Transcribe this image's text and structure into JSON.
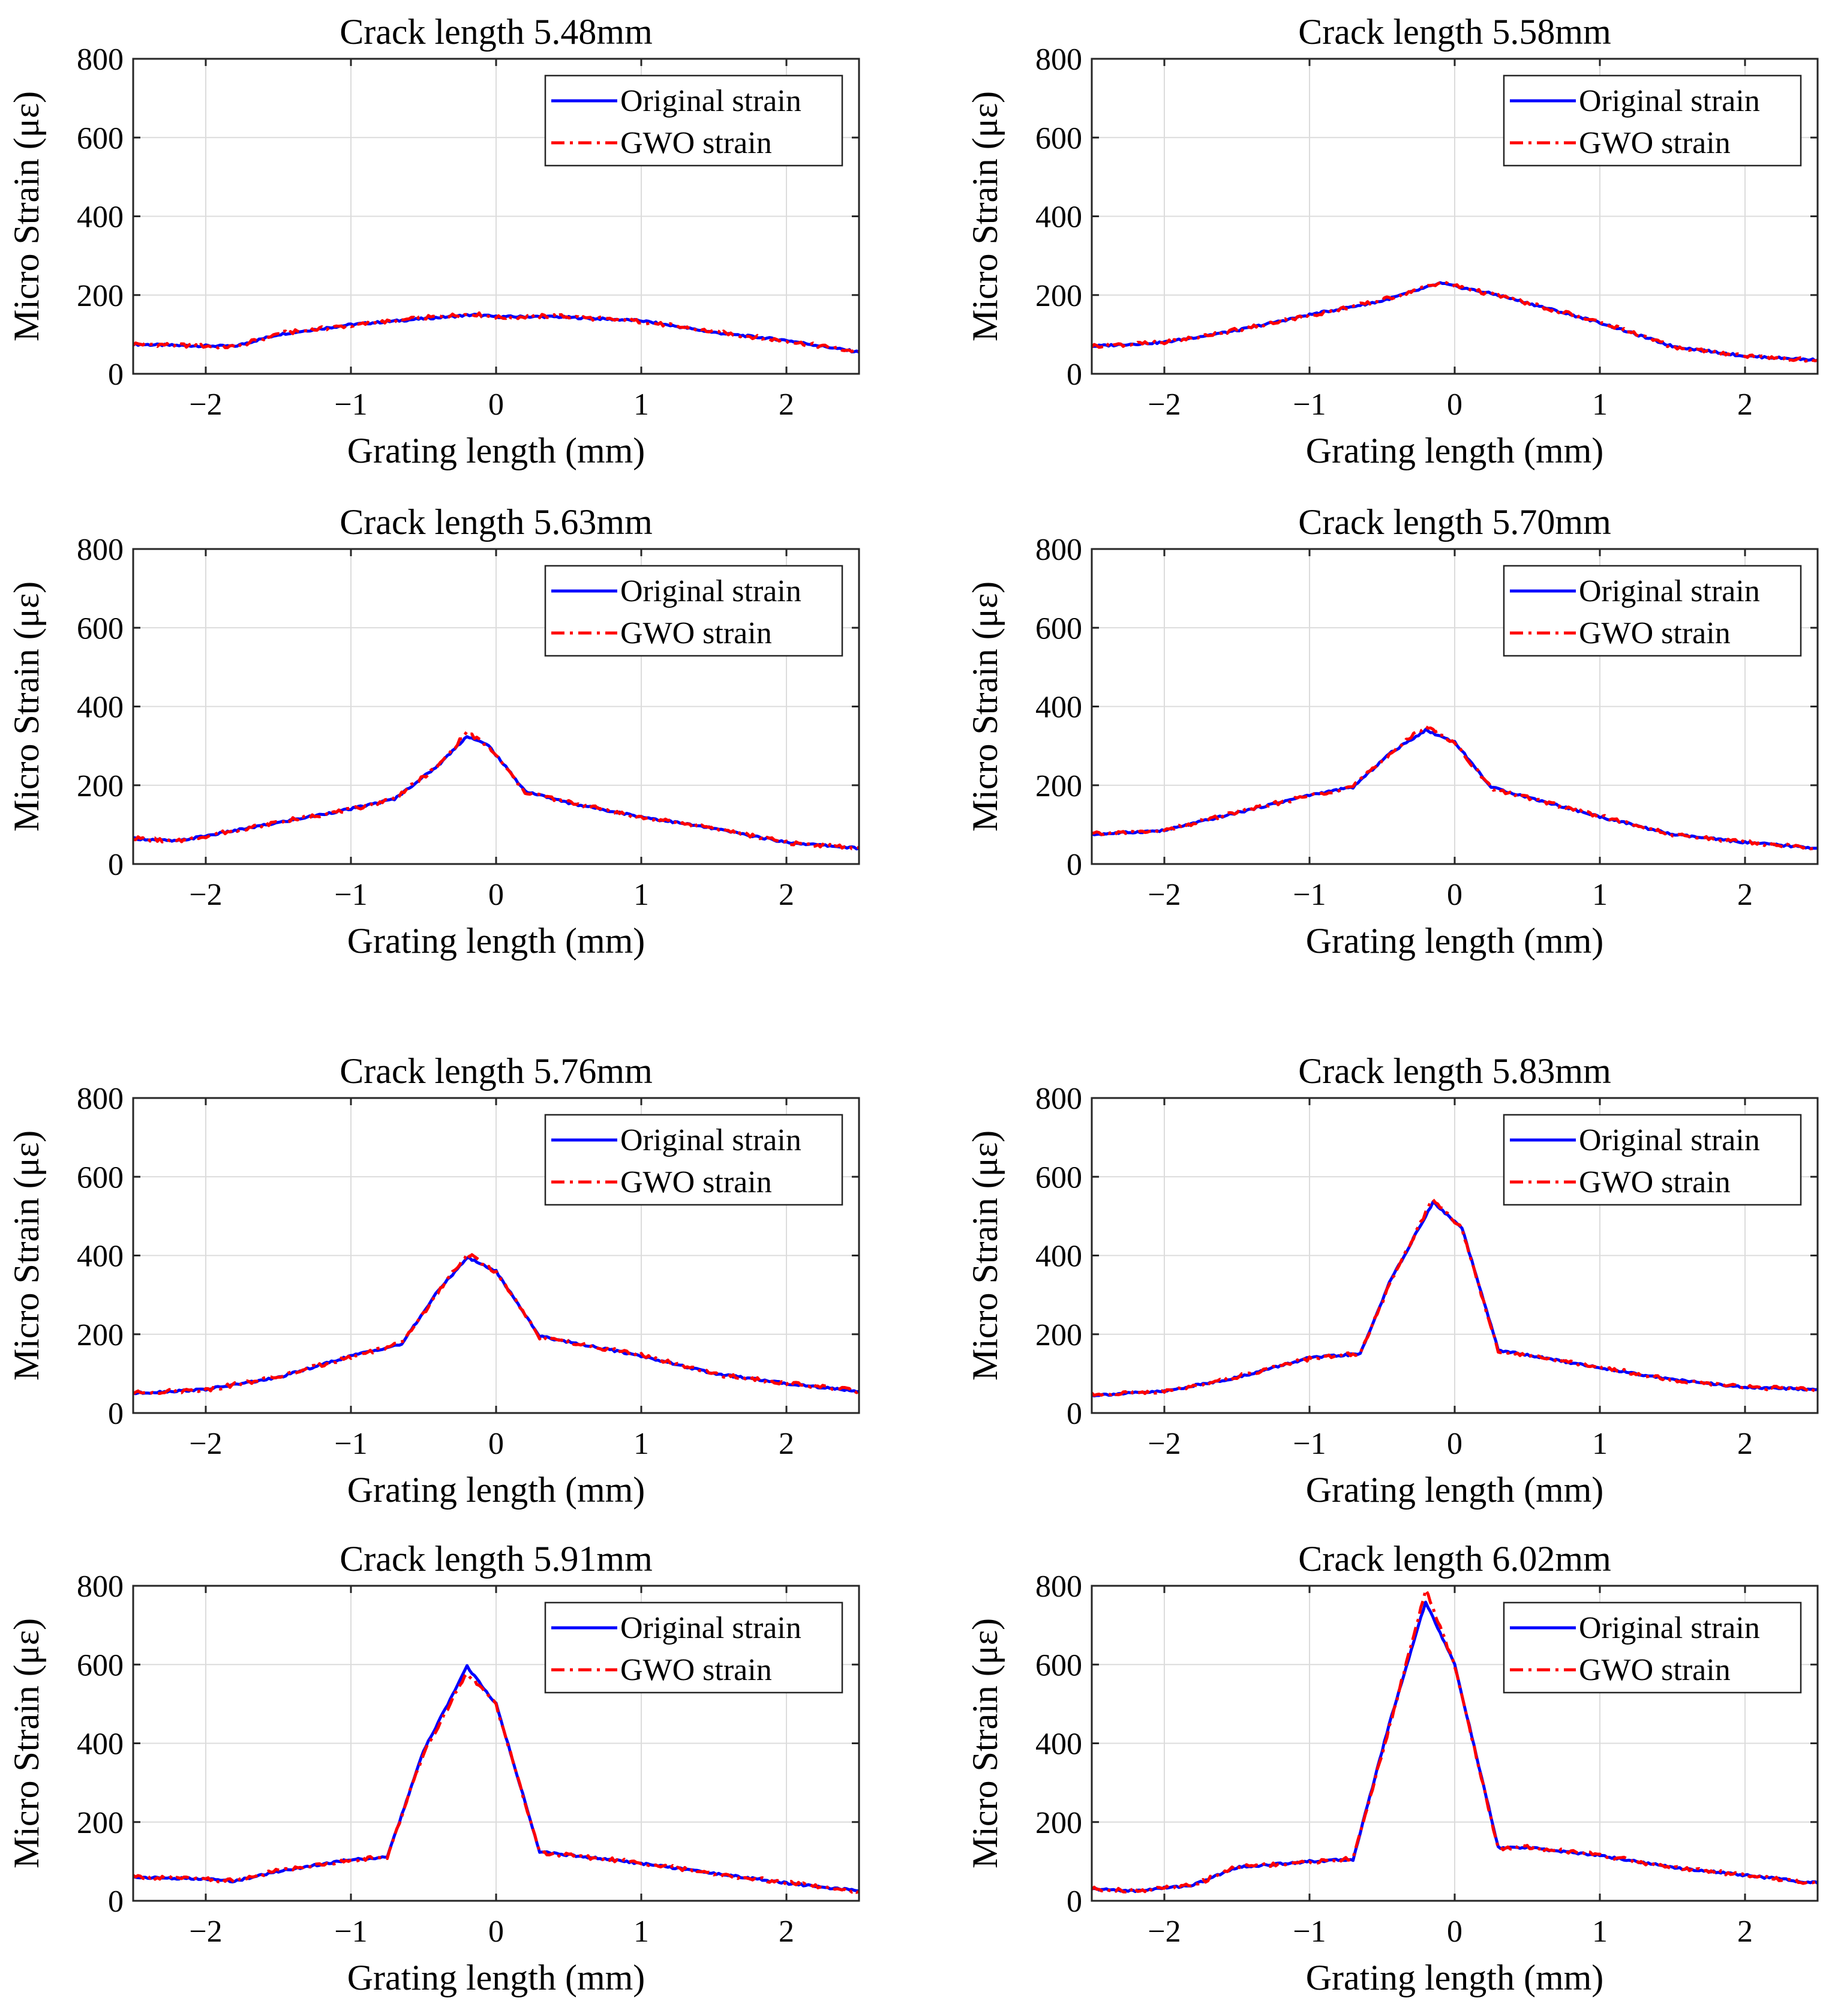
{
  "chart_data": [
    {
      "type": "line",
      "title": "Crack length 5.48mm",
      "xlabel": "Grating length (mm)",
      "ylabel": "Micro Strain (με)",
      "xlim": [
        -2.5,
        2.5
      ],
      "ylim": [
        0,
        800
      ],
      "xticks": [
        -2,
        -1,
        0,
        1,
        2
      ],
      "xtick_labels": [
        "−2",
        "−1",
        "0",
        "1",
        "2"
      ],
      "yticks": [
        0,
        200,
        400,
        600,
        800
      ],
      "ytick_labels": [
        "0",
        "200",
        "400",
        "600",
        "800"
      ],
      "grid": true,
      "legend_position": "top-right",
      "x": [
        -2.5,
        -2.2,
        -1.8,
        -1.5,
        -1.0,
        -0.5,
        -0.15,
        0.0,
        0.4,
        1.0,
        1.5,
        2.0,
        2.5
      ],
      "series": [
        {
          "name": "Original strain",
          "color": "#0000ff",
          "style": "solid",
          "values": [
            75,
            72,
            70,
            100,
            125,
            140,
            150,
            145,
            145,
            135,
            105,
            85,
            55
          ]
        },
        {
          "name": "GWO strain",
          "color": "#ff0000",
          "style": "dashdot",
          "values": [
            76,
            73,
            68,
            102,
            123,
            142,
            152,
            143,
            147,
            133,
            107,
            83,
            56
          ]
        }
      ]
    },
    {
      "type": "line",
      "title": "Crack length 5.58mm",
      "xlabel": "Grating length (mm)",
      "ylabel": "Micro Strain (με)",
      "xlim": [
        -2.5,
        2.5
      ],
      "ylim": [
        0,
        800
      ],
      "xticks": [
        -2,
        -1,
        0,
        1,
        2
      ],
      "xtick_labels": [
        "−2",
        "−1",
        "0",
        "1",
        "2"
      ],
      "yticks": [
        0,
        200,
        400,
        600,
        800
      ],
      "ytick_labels": [
        "0",
        "200",
        "400",
        "600",
        "800"
      ],
      "grid": true,
      "legend_position": "top-right",
      "x": [
        -2.5,
        -2.0,
        -1.5,
        -1.0,
        -0.5,
        -0.1,
        0.3,
        1.0,
        1.5,
        2.0,
        2.5
      ],
      "series": [
        {
          "name": "Original strain",
          "color": "#0000ff",
          "style": "solid",
          "values": [
            70,
            80,
            110,
            150,
            185,
            230,
            200,
            130,
            70,
            45,
            35
          ]
        },
        {
          "name": "GWO strain",
          "color": "#ff0000",
          "style": "dashdot",
          "values": [
            71,
            79,
            112,
            148,
            187,
            232,
            198,
            132,
            69,
            46,
            34
          ]
        }
      ]
    },
    {
      "type": "line",
      "title": "Crack length 5.63mm",
      "xlabel": "Grating length (mm)",
      "ylabel": "Micro Strain (με)",
      "xlim": [
        -2.5,
        2.5
      ],
      "ylim": [
        0,
        800
      ],
      "xticks": [
        -2,
        -1,
        0,
        1,
        2
      ],
      "xtick_labels": [
        "−2",
        "−1",
        "0",
        "1",
        "2"
      ],
      "yticks": [
        0,
        200,
        400,
        600,
        800
      ],
      "ytick_labels": [
        "0",
        "200",
        "400",
        "600",
        "800"
      ],
      "grid": true,
      "legend_position": "top-right",
      "x": [
        -2.5,
        -2.2,
        -1.5,
        -1.0,
        -0.7,
        -0.4,
        -0.2,
        -0.05,
        0.2,
        0.5,
        1.0,
        1.5,
        2.0,
        2.5
      ],
      "series": [
        {
          "name": "Original strain",
          "color": "#0000ff",
          "style": "solid",
          "values": [
            65,
            58,
            105,
            140,
            165,
            250,
            325,
            300,
            185,
            155,
            120,
            90,
            55,
            40
          ]
        },
        {
          "name": "GWO strain",
          "color": "#ff0000",
          "style": "dashdot",
          "values": [
            66,
            57,
            107,
            138,
            167,
            248,
            335,
            298,
            183,
            157,
            118,
            92,
            54,
            41
          ]
        }
      ]
    },
    {
      "type": "line",
      "title": "Crack length 5.70mm",
      "xlabel": "Grating length (mm)",
      "ylabel": "Micro Strain (με)",
      "xlim": [
        -2.5,
        2.5
      ],
      "ylim": [
        0,
        800
      ],
      "xticks": [
        -2,
        -1,
        0,
        1,
        2
      ],
      "xtick_labels": [
        "−2",
        "−1",
        "0",
        "1",
        "2"
      ],
      "yticks": [
        0,
        200,
        400,
        600,
        800
      ],
      "ytick_labels": [
        "0",
        "200",
        "400",
        "600",
        "800"
      ],
      "grid": true,
      "legend_position": "top-right",
      "x": [
        -2.5,
        -2.0,
        -1.5,
        -1.0,
        -0.7,
        -0.45,
        -0.2,
        0.0,
        0.25,
        1.0,
        1.5,
        2.0,
        2.5
      ],
      "series": [
        {
          "name": "Original strain",
          "color": "#0000ff",
          "style": "solid",
          "values": [
            75,
            85,
            130,
            175,
            195,
            280,
            340,
            310,
            195,
            120,
            75,
            55,
            40
          ]
        },
        {
          "name": "GWO strain",
          "color": "#ff0000",
          "style": "dashdot",
          "values": [
            76,
            84,
            132,
            173,
            197,
            278,
            352,
            308,
            193,
            122,
            74,
            56,
            39
          ]
        }
      ]
    },
    {
      "type": "line",
      "title": "Crack length 5.76mm",
      "xlabel": "Grating length (mm)",
      "ylabel": "Micro Strain (με)",
      "xlim": [
        -2.5,
        2.5
      ],
      "ylim": [
        0,
        800
      ],
      "xticks": [
        -2,
        -1,
        0,
        1,
        2
      ],
      "xtick_labels": [
        "−2",
        "−1",
        "0",
        "1",
        "2"
      ],
      "yticks": [
        0,
        200,
        400,
        600,
        800
      ],
      "ytick_labels": [
        "0",
        "200",
        "400",
        "600",
        "800"
      ],
      "grid": true,
      "legend_position": "top-right",
      "x": [
        -2.5,
        -2.0,
        -1.5,
        -1.0,
        -0.65,
        -0.4,
        -0.2,
        0.0,
        0.3,
        1.0,
        1.5,
        2.0,
        2.5
      ],
      "series": [
        {
          "name": "Original strain",
          "color": "#0000ff",
          "style": "solid",
          "values": [
            50,
            60,
            90,
            145,
            175,
            310,
            395,
            360,
            195,
            145,
            100,
            75,
            55
          ]
        },
        {
          "name": "GWO strain",
          "color": "#ff0000",
          "style": "dashdot",
          "values": [
            51,
            59,
            92,
            143,
            177,
            305,
            405,
            358,
            193,
            147,
            99,
            76,
            56
          ]
        }
      ]
    },
    {
      "type": "line",
      "title": "Crack length 5.83mm",
      "xlabel": "Grating length (mm)",
      "ylabel": "Micro Strain (με)",
      "xlim": [
        -2.5,
        2.5
      ],
      "ylim": [
        0,
        800
      ],
      "xticks": [
        -2,
        -1,
        0,
        1,
        2
      ],
      "xtick_labels": [
        "−2",
        "−1",
        "0",
        "1",
        "2"
      ],
      "yticks": [
        0,
        200,
        400,
        600,
        800
      ],
      "ytick_labels": [
        "0",
        "200",
        "400",
        "600",
        "800"
      ],
      "grid": true,
      "legend_position": "top-right",
      "x": [
        -2.5,
        -2.0,
        -1.5,
        -1.0,
        -0.65,
        -0.45,
        -0.15,
        0.05,
        0.3,
        1.0,
        1.5,
        2.0,
        2.5
      ],
      "series": [
        {
          "name": "Original strain",
          "color": "#0000ff",
          "style": "solid",
          "values": [
            45,
            55,
            90,
            140,
            150,
            330,
            535,
            470,
            160,
            115,
            85,
            65,
            60
          ]
        },
        {
          "name": "GWO strain",
          "color": "#ff0000",
          "style": "dashdot",
          "values": [
            46,
            54,
            92,
            138,
            152,
            325,
            545,
            468,
            158,
            117,
            84,
            66,
            59
          ]
        }
      ]
    },
    {
      "type": "line",
      "title": "Crack length 5.91mm",
      "xlabel": "Grating length (mm)",
      "ylabel": "Micro Strain (με)",
      "xlim": [
        -2.5,
        2.5
      ],
      "ylim": [
        0,
        800
      ],
      "xticks": [
        -2,
        -1,
        0,
        1,
        2
      ],
      "xtick_labels": [
        "−2",
        "−1",
        "0",
        "1",
        "2"
      ],
      "yticks": [
        0,
        200,
        400,
        600,
        800
      ],
      "ytick_labels": [
        "0",
        "200",
        "400",
        "600",
        "800"
      ],
      "grid": true,
      "legend_position": "top-right",
      "x": [
        -2.5,
        -2.0,
        -1.8,
        -1.5,
        -1.0,
        -0.75,
        -0.5,
        -0.2,
        0.0,
        0.3,
        1.0,
        1.5,
        2.0,
        2.5
      ],
      "series": [
        {
          "name": "Original strain",
          "color": "#0000ff",
          "style": "solid",
          "values": [
            60,
            55,
            50,
            75,
            105,
            110,
            380,
            595,
            500,
            125,
            95,
            70,
            45,
            25
          ]
        },
        {
          "name": "GWO strain",
          "color": "#ff0000",
          "style": "dashdot",
          "values": [
            61,
            54,
            51,
            77,
            103,
            112,
            375,
            580,
            498,
            123,
            97,
            69,
            46,
            24
          ]
        }
      ]
    },
    {
      "type": "line",
      "title": "Crack length 6.02mm",
      "xlabel": "Grating length (mm)",
      "ylabel": "Micro Strain (με)",
      "xlim": [
        -2.5,
        2.5
      ],
      "ylim": [
        0,
        800
      ],
      "xticks": [
        -2,
        -1,
        0,
        1,
        2
      ],
      "xtick_labels": [
        "−2",
        "−1",
        "0",
        "1",
        "2"
      ],
      "yticks": [
        0,
        200,
        400,
        600,
        800
      ],
      "ytick_labels": [
        "0",
        "200",
        "400",
        "600",
        "800"
      ],
      "grid": true,
      "legend_position": "top-right",
      "x": [
        -2.5,
        -2.2,
        -1.8,
        -1.5,
        -1.0,
        -0.7,
        -0.45,
        -0.2,
        0.0,
        0.3,
        0.5,
        1.0,
        1.5,
        2.0,
        2.5
      ],
      "series": [
        {
          "name": "Original strain",
          "color": "#0000ff",
          "style": "solid",
          "values": [
            30,
            25,
            40,
            85,
            100,
            105,
            450,
            760,
            600,
            135,
            135,
            115,
            85,
            65,
            45
          ]
        },
        {
          "name": "GWO strain",
          "color": "#ff0000",
          "style": "dashdot",
          "values": [
            31,
            26,
            39,
            87,
            98,
            107,
            440,
            790,
            598,
            133,
            137,
            117,
            84,
            66,
            44
          ]
        }
      ]
    }
  ]
}
